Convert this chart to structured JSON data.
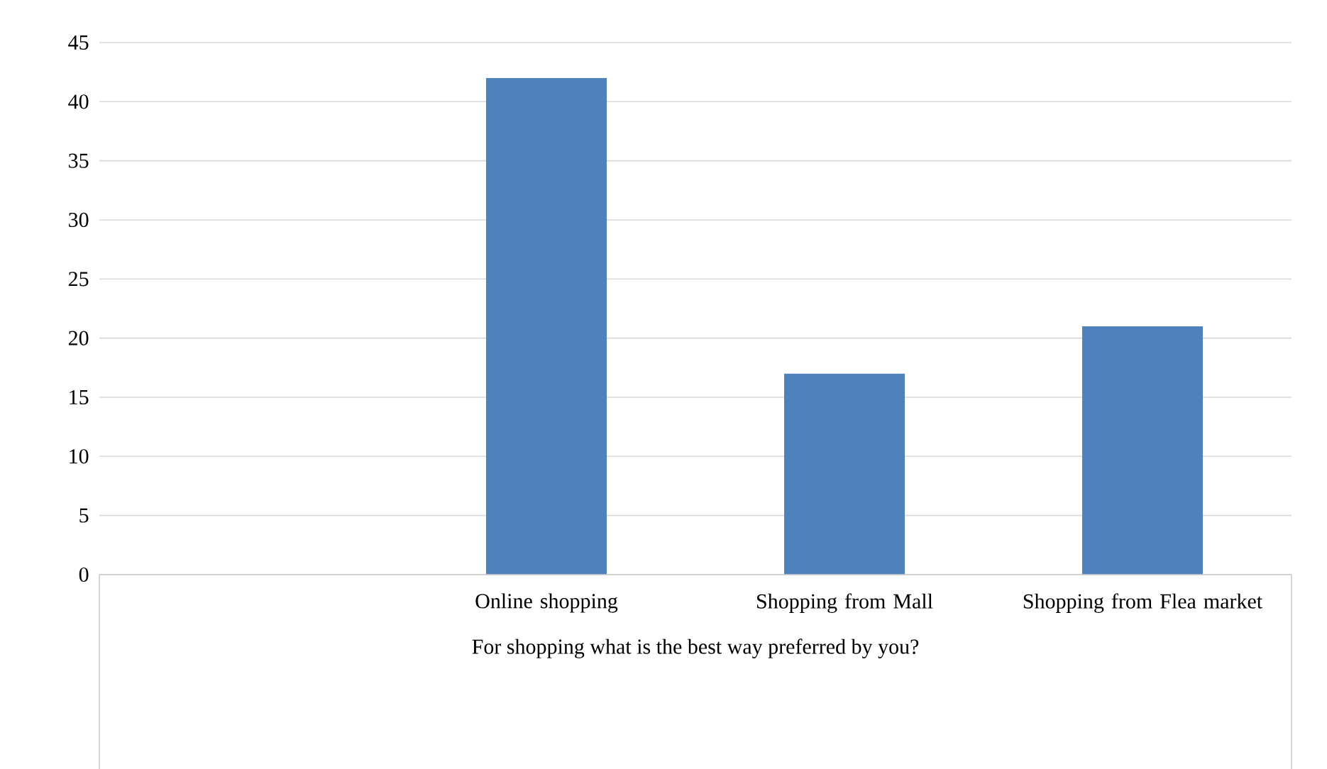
{
  "chart_data": {
    "type": "bar",
    "xlabel": "For shopping what is the best way preferred by you?",
    "categories": [
      null,
      "Online shopping",
      "Shopping from Mall",
      "Shopping from Flea market"
    ],
    "values": [
      null,
      42,
      17,
      21
    ],
    "color": "#4f81bd",
    "ylim": [
      0,
      45
    ],
    "yticks": [
      0,
      5,
      10,
      15,
      20,
      25,
      30,
      35,
      40,
      45
    ],
    "grid": "y"
  }
}
